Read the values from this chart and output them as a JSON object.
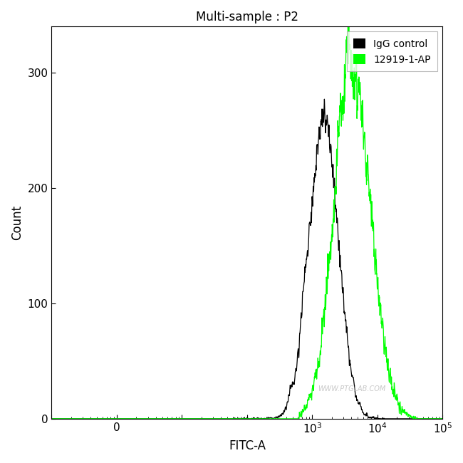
{
  "title": "Multi-sample : P2",
  "xlabel": "FITC-A",
  "ylabel": "Count",
  "ylim": [
    0,
    340
  ],
  "yticks": [
    0,
    100,
    200,
    300
  ],
  "bg_color": "#ffffff",
  "watermark": "WWW.PTGLAB.COM",
  "legend_labels": [
    "IgG control",
    "12919-1-AP"
  ],
  "legend_colors": [
    "#000000",
    "#00ff00"
  ],
  "black_peak_log": 3.18,
  "black_peak_count": 262,
  "black_sigma_log": 0.22,
  "green_peak_log": 3.62,
  "green_peak_count": 300,
  "green_sigma_log": 0.28,
  "xlim_min": -1,
  "xlim_max": 5,
  "noise_seed_black": 7,
  "noise_seed_green": 15
}
